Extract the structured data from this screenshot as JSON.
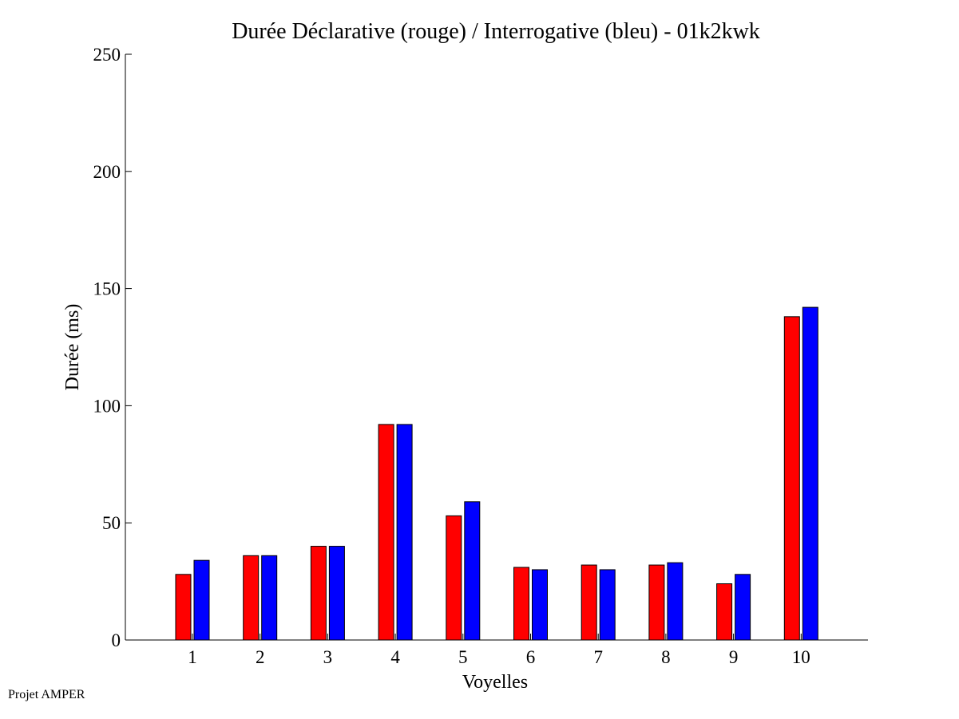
{
  "footer": {
    "credit": "Projet AMPER"
  },
  "colors": {
    "declarative": "#ff0000",
    "interrogative": "#0000ff",
    "axis": "#000000",
    "background": "#ffffff"
  },
  "chart_data": {
    "type": "bar",
    "title": "Durée Déclarative (rouge) / Interrogative (bleu) - 01k2kwk",
    "xlabel": "Voyelles",
    "ylabel": "Durée (ms)",
    "ylim": [
      0,
      250
    ],
    "yticks": [
      0,
      50,
      100,
      150,
      200,
      250
    ],
    "grid": false,
    "legend": "none",
    "categories": [
      "1",
      "2",
      "3",
      "4",
      "5",
      "6",
      "7",
      "8",
      "9",
      "10"
    ],
    "series": [
      {
        "color": "#ff0000",
        "values": [
          28,
          36,
          40,
          92,
          53,
          31,
          32,
          32,
          24,
          138
        ]
      },
      {
        "color": "#0000ff",
        "values": [
          34,
          36,
          40,
          92,
          59,
          30,
          30,
          33,
          28,
          142
        ]
      }
    ]
  }
}
